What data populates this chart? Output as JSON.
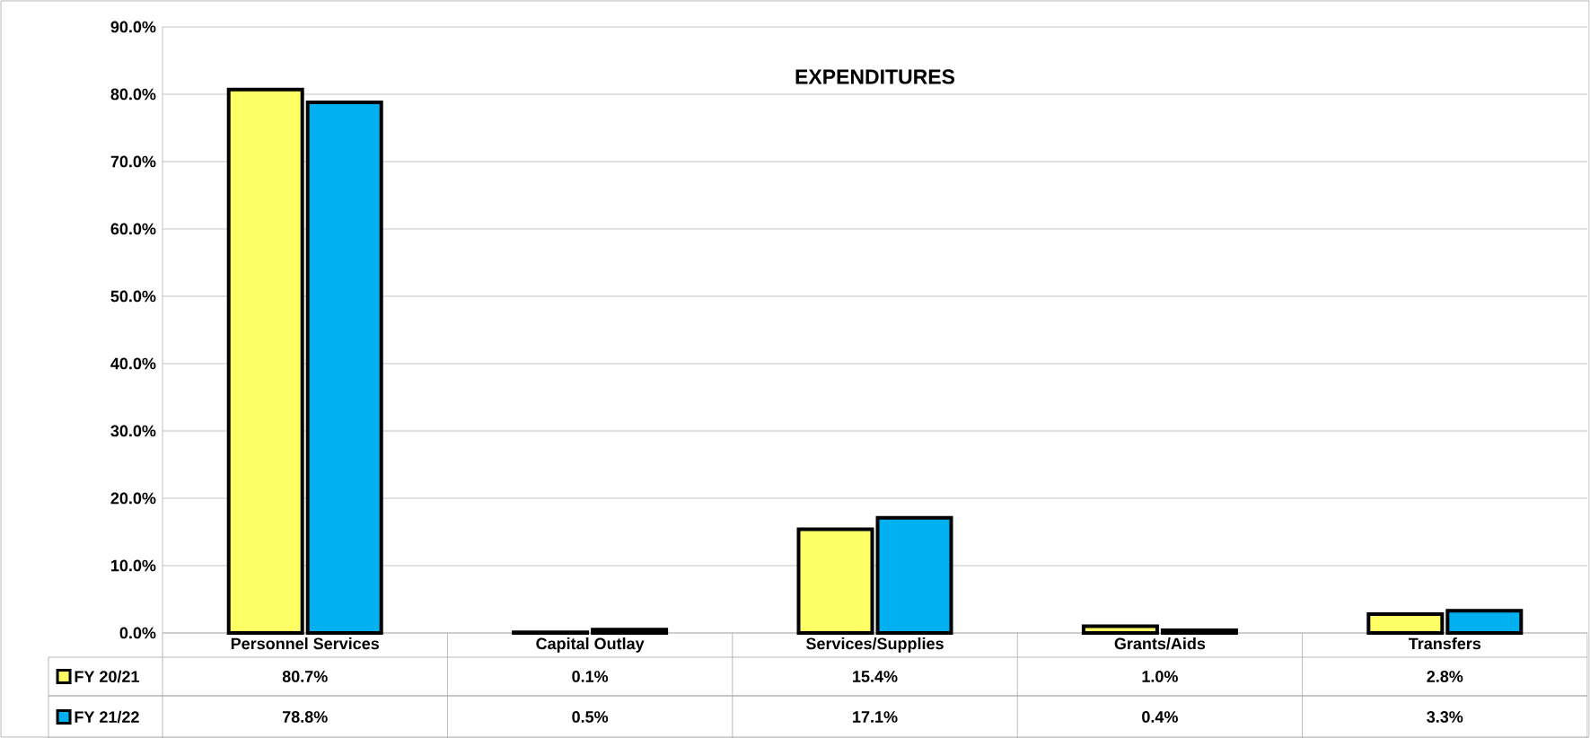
{
  "chart_data": {
    "type": "bar",
    "title": "EXPENDITURES",
    "categories": [
      "Personnel Services",
      "Capital Outlay",
      "Services/Supplies",
      "Grants/Aids",
      "Transfers"
    ],
    "series": [
      {
        "name": "FY 20/21",
        "color": "#ffff66",
        "values": [
          80.7,
          0.1,
          15.4,
          1.0,
          2.8
        ],
        "value_labels": [
          "80.7%",
          "0.1%",
          "15.4%",
          "1.0%",
          "2.8%"
        ]
      },
      {
        "name": "FY 21/22",
        "color": "#00b0f0",
        "values": [
          78.8,
          0.5,
          17.1,
          0.4,
          3.3
        ],
        "value_labels": [
          "78.8%",
          "0.5%",
          "17.1%",
          "0.4%",
          "3.3%"
        ]
      }
    ],
    "ylim": [
      0,
      90
    ],
    "yticks": [
      {
        "value": 0,
        "label": "0.0%"
      },
      {
        "value": 10,
        "label": "10.0%"
      },
      {
        "value": 20,
        "label": "20.0%"
      },
      {
        "value": 30,
        "label": "30.0%"
      },
      {
        "value": 40,
        "label": "40.0%"
      },
      {
        "value": 50,
        "label": "50.0%"
      },
      {
        "value": 60,
        "label": "60.0%"
      },
      {
        "value": 70,
        "label": "70.0%"
      },
      {
        "value": 80,
        "label": "80.0%"
      },
      {
        "value": 90,
        "label": "90.0%"
      }
    ],
    "grid": "y",
    "legend": "bottom left"
  }
}
